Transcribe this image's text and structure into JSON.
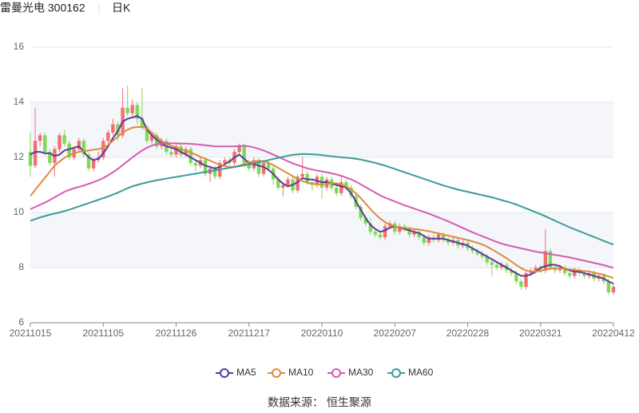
{
  "chart_data": {
    "type": "candlestick",
    "title": "雷曼光电 300162",
    "period": "日K",
    "source": "数据来源： 恒生聚源",
    "ylim": [
      6,
      16
    ],
    "yticks": [
      6,
      8,
      10,
      12,
      14,
      16
    ],
    "grid": true,
    "split_area": true,
    "up_color": "#f07070",
    "down_color": "#7ed957",
    "categories": [
      "20211015",
      null,
      null,
      null,
      null,
      null,
      null,
      null,
      null,
      null,
      null,
      null,
      null,
      null,
      null,
      "20211105",
      null,
      null,
      null,
      null,
      null,
      null,
      null,
      null,
      null,
      null,
      null,
      null,
      null,
      null,
      "20211126",
      null,
      null,
      null,
      null,
      null,
      null,
      null,
      null,
      null,
      null,
      null,
      null,
      null,
      null,
      "20211217",
      null,
      null,
      null,
      null,
      null,
      null,
      null,
      null,
      null,
      null,
      null,
      null,
      null,
      null,
      "20220110",
      null,
      null,
      null,
      null,
      null,
      null,
      null,
      null,
      null,
      null,
      null,
      null,
      null,
      null,
      "20220207",
      null,
      null,
      null,
      null,
      null,
      null,
      null,
      null,
      null,
      null,
      null,
      null,
      null,
      null,
      "20220228",
      null,
      null,
      null,
      null,
      null,
      null,
      null,
      null,
      null,
      null,
      null,
      null,
      null,
      null,
      "20220321",
      null,
      null,
      null,
      null,
      null,
      null,
      null,
      null,
      null,
      null,
      null,
      null,
      null,
      null,
      "20220412"
    ],
    "open": [
      12.2,
      11.7,
      12.6,
      12.8,
      12.2,
      11.8,
      12.3,
      12.8,
      12.5,
      12.0,
      12.3,
      12.6,
      12.1,
      11.6,
      11.9,
      12.0,
      12.6,
      12.9,
      13.2,
      12.8,
      13.8,
      13.6,
      13.9,
      13.4,
      13.1,
      12.6,
      12.8,
      12.4,
      12.6,
      12.2,
      12.1,
      12.4,
      12.1,
      12.3,
      11.8,
      11.7,
      11.9,
      11.4,
      11.6,
      11.3,
      11.8,
      11.9,
      11.8,
      12.2,
      12.4,
      11.8,
      11.6,
      11.9,
      11.4,
      11.8,
      11.6,
      11.2,
      10.9,
      11.0,
      11.2,
      10.8,
      11.3,
      11.4,
      11.1,
      11.0,
      11.3,
      10.9,
      11.2,
      10.9,
      10.7,
      11.1,
      10.9,
      10.6,
      10.2,
      9.8,
      9.6,
      9.3,
      9.2,
      9.1,
      9.5,
      9.6,
      9.3,
      9.5,
      9.4,
      9.2,
      9.3,
      9.1,
      8.9,
      9.1,
      9.0,
      9.2,
      9.0,
      8.9,
      9.0,
      8.8,
      8.9,
      8.7,
      8.6,
      8.5,
      8.4,
      8.2,
      8.1,
      8.0,
      8.1,
      7.9,
      7.8,
      7.5,
      7.3,
      7.8,
      7.9,
      8.0,
      7.9,
      8.6,
      8.0,
      7.9,
      8.0,
      7.8,
      7.7,
      7.9,
      7.8,
      7.7,
      7.8,
      7.6,
      7.7,
      7.5,
      7.1
    ],
    "close": [
      11.7,
      12.6,
      12.8,
      12.2,
      11.8,
      12.3,
      12.8,
      12.5,
      12.0,
      12.3,
      12.6,
      12.1,
      11.6,
      11.9,
      12.0,
      12.6,
      12.9,
      13.2,
      12.8,
      13.8,
      13.6,
      13.9,
      13.4,
      13.1,
      12.6,
      12.8,
      12.4,
      12.6,
      12.2,
      12.1,
      12.4,
      12.1,
      12.3,
      11.8,
      11.7,
      11.9,
      11.4,
      11.6,
      11.3,
      11.8,
      11.9,
      11.8,
      12.2,
      12.4,
      11.8,
      11.6,
      11.9,
      11.4,
      11.8,
      11.6,
      11.2,
      10.9,
      11.0,
      11.2,
      10.8,
      11.3,
      11.4,
      11.1,
      11.0,
      11.3,
      10.9,
      11.2,
      10.9,
      10.7,
      11.1,
      10.9,
      10.6,
      10.2,
      9.8,
      9.6,
      9.3,
      9.2,
      9.1,
      9.5,
      9.6,
      9.3,
      9.5,
      9.4,
      9.2,
      9.3,
      9.1,
      8.9,
      9.1,
      9.0,
      9.2,
      9.0,
      8.9,
      9.0,
      8.8,
      8.9,
      8.7,
      8.6,
      8.5,
      8.4,
      8.2,
      8.1,
      8.0,
      8.1,
      7.9,
      7.8,
      7.5,
      7.3,
      7.8,
      7.9,
      8.0,
      7.9,
      8.6,
      8.0,
      7.9,
      8.0,
      7.8,
      7.7,
      7.9,
      7.8,
      7.7,
      7.8,
      7.6,
      7.7,
      7.5,
      7.1,
      7.3
    ],
    "low": [
      11.3,
      11.6,
      12.4,
      12.1,
      11.7,
      11.3,
      12.2,
      12.4,
      11.9,
      11.9,
      12.2,
      12.0,
      11.5,
      11.5,
      11.8,
      11.9,
      12.5,
      12.8,
      12.6,
      12.7,
      13.5,
      13.5,
      13.2,
      13.0,
      12.5,
      12.5,
      12.3,
      12.3,
      12.1,
      12.0,
      12.0,
      12.0,
      12.0,
      11.7,
      11.5,
      11.6,
      11.3,
      11.1,
      11.2,
      11.2,
      11.7,
      11.7,
      11.7,
      12.1,
      11.7,
      11.5,
      11.5,
      11.3,
      11.3,
      11.5,
      11.0,
      10.8,
      10.6,
      10.9,
      10.7,
      10.7,
      11.2,
      11.0,
      10.8,
      10.9,
      10.5,
      10.8,
      10.8,
      10.6,
      10.6,
      10.8,
      10.5,
      10.1,
      9.7,
      9.5,
      9.2,
      9.1,
      9.0,
      9.0,
      9.4,
      9.2,
      9.2,
      9.3,
      9.1,
      9.1,
      9.0,
      8.8,
      8.8,
      8.9,
      8.9,
      8.9,
      8.8,
      8.8,
      8.7,
      8.7,
      8.6,
      8.5,
      8.4,
      8.3,
      8.1,
      7.7,
      7.9,
      7.9,
      7.8,
      7.7,
      7.4,
      7.2,
      7.2,
      7.7,
      7.8,
      7.8,
      7.8,
      7.9,
      7.8,
      7.8,
      7.7,
      7.6,
      7.6,
      7.7,
      7.6,
      7.6,
      7.5,
      7.5,
      7.4,
      7.0,
      7.0
    ],
    "high": [
      12.9,
      13.8,
      12.9,
      12.9,
      12.3,
      12.4,
      12.9,
      13.0,
      12.6,
      12.4,
      12.7,
      12.7,
      12.2,
      12.0,
      12.2,
      12.7,
      13.0,
      13.4,
      13.3,
      14.5,
      14.6,
      14.1,
      14.0,
      14.5,
      13.2,
      12.9,
      12.9,
      12.7,
      12.7,
      12.3,
      12.5,
      12.5,
      12.4,
      12.4,
      11.9,
      12.0,
      12.0,
      11.7,
      11.7,
      11.9,
      12.0,
      12.0,
      12.3,
      12.5,
      12.5,
      11.9,
      12.0,
      12.0,
      11.9,
      11.9,
      11.7,
      11.3,
      11.1,
      11.3,
      11.3,
      11.4,
      12.0,
      11.5,
      11.2,
      11.4,
      11.4,
      11.3,
      11.3,
      11.0,
      11.3,
      11.2,
      11.0,
      10.7,
      10.3,
      9.9,
      9.8,
      9.4,
      9.3,
      9.6,
      9.7,
      9.7,
      9.6,
      9.6,
      9.5,
      9.4,
      9.4,
      9.2,
      9.2,
      9.2,
      9.3,
      9.3,
      9.1,
      9.1,
      9.1,
      9.0,
      9.0,
      8.8,
      8.7,
      8.6,
      8.5,
      8.3,
      8.2,
      8.2,
      8.2,
      8.0,
      7.9,
      7.6,
      7.9,
      8.0,
      8.1,
      8.1,
      9.4,
      8.7,
      8.1,
      8.1,
      8.1,
      7.9,
      8.0,
      8.0,
      7.9,
      7.9,
      7.9,
      7.8,
      7.8,
      7.6,
      7.4
    ],
    "series": [
      {
        "name": "MA5",
        "color": "#5b3c9c",
        "values": [
          12.1,
          12.2,
          12.2,
          12.15,
          12.15,
          12.05,
          12.1,
          12.25,
          12.3,
          12.35,
          12.4,
          12.2,
          12.0,
          11.9,
          11.95,
          12.15,
          12.4,
          12.7,
          12.95,
          13.3,
          13.4,
          13.45,
          13.5,
          13.4,
          13.0,
          12.8,
          12.65,
          12.5,
          12.4,
          12.35,
          12.3,
          12.2,
          12.1,
          12.0,
          11.9,
          11.8,
          11.7,
          11.65,
          11.6,
          11.65,
          11.75,
          11.85,
          12.0,
          12.1,
          11.95,
          11.8,
          11.75,
          11.7,
          11.65,
          11.55,
          11.4,
          11.2,
          11.05,
          10.95,
          11.0,
          11.1,
          11.25,
          11.2,
          11.2,
          11.15,
          11.1,
          11.1,
          11.05,
          11.0,
          10.95,
          10.9,
          10.7,
          10.4,
          10.1,
          9.8,
          9.55,
          9.4,
          9.3,
          9.35,
          9.45,
          9.5,
          9.45,
          9.4,
          9.35,
          9.3,
          9.25,
          9.15,
          9.05,
          9.05,
          9.05,
          9.05,
          9.0,
          8.95,
          8.9,
          8.85,
          8.8,
          8.7,
          8.6,
          8.5,
          8.4,
          8.3,
          8.2,
          8.1,
          8.0,
          7.9,
          7.8,
          7.7,
          7.7,
          7.75,
          7.85,
          8.0,
          8.05,
          8.1,
          8.1,
          8.05,
          7.95,
          7.9,
          7.85,
          7.85,
          7.8,
          7.75,
          7.7,
          7.65,
          7.6,
          7.5,
          7.42
        ]
      },
      {
        "name": "MA10",
        "color": "#e08a3c",
        "values": [
          10.6,
          10.82,
          11.04,
          11.26,
          11.48,
          11.7,
          11.85,
          11.98,
          12.08,
          12.15,
          12.2,
          12.22,
          12.25,
          12.28,
          12.3,
          12.35,
          12.45,
          12.6,
          12.75,
          12.9,
          13.0,
          13.08,
          13.1,
          13.1,
          13.05,
          12.9,
          12.75,
          12.6,
          12.5,
          12.42,
          12.36,
          12.3,
          12.24,
          12.18,
          12.1,
          12.02,
          11.95,
          11.88,
          11.8,
          11.74,
          11.68,
          11.65,
          11.66,
          11.7,
          11.76,
          11.82,
          11.86,
          11.88,
          11.86,
          11.8,
          11.72,
          11.62,
          11.52,
          11.42,
          11.32,
          11.22,
          11.14,
          11.08,
          11.04,
          11.02,
          11.02,
          11.04,
          11.06,
          11.06,
          11.02,
          10.94,
          10.84,
          10.7,
          10.52,
          10.32,
          10.12,
          9.94,
          9.78,
          9.65,
          9.56,
          9.5,
          9.46,
          9.44,
          9.42,
          9.4,
          9.38,
          9.35,
          9.32,
          9.28,
          9.24,
          9.2,
          9.16,
          9.12,
          9.08,
          9.04,
          9.0,
          8.95,
          8.9,
          8.84,
          8.76,
          8.66,
          8.56,
          8.45,
          8.34,
          8.22,
          8.1,
          7.98,
          7.9,
          7.86,
          7.86,
          7.88,
          7.92,
          7.96,
          7.98,
          7.98,
          7.96,
          7.94,
          7.92,
          7.9,
          7.88,
          7.86,
          7.82,
          7.78,
          7.74,
          7.68,
          7.62
        ]
      },
      {
        "name": "MA30",
        "color": "#d45bb2",
        "values": [
          10.12,
          10.2,
          10.28,
          10.36,
          10.45,
          10.55,
          10.65,
          10.75,
          10.82,
          10.88,
          10.93,
          10.98,
          11.04,
          11.1,
          11.17,
          11.25,
          11.35,
          11.46,
          11.58,
          11.72,
          11.86,
          12.0,
          12.13,
          12.25,
          12.35,
          12.43,
          12.48,
          12.5,
          12.51,
          12.51,
          12.51,
          12.5,
          12.5,
          12.49,
          12.48,
          12.46,
          12.44,
          12.42,
          12.4,
          12.4,
          12.4,
          12.4,
          12.4,
          12.41,
          12.42,
          12.4,
          12.36,
          12.31,
          12.25,
          12.18,
          12.1,
          12.02,
          11.94,
          11.86,
          11.78,
          11.72,
          11.66,
          11.6,
          11.56,
          11.52,
          11.49,
          11.46,
          11.42,
          11.38,
          11.33,
          11.27,
          11.2,
          11.12,
          11.02,
          10.92,
          10.82,
          10.72,
          10.62,
          10.54,
          10.47,
          10.4,
          10.33,
          10.26,
          10.2,
          10.14,
          10.08,
          10.02,
          9.96,
          9.89,
          9.82,
          9.75,
          9.68,
          9.6,
          9.52,
          9.44,
          9.36,
          9.28,
          9.21,
          9.14,
          9.07,
          9.0,
          8.93,
          8.87,
          8.82,
          8.78,
          8.74,
          8.7,
          8.66,
          8.62,
          8.58,
          8.55,
          8.52,
          8.49,
          8.46,
          8.43,
          8.4,
          8.37,
          8.33,
          8.29,
          8.25,
          8.21,
          8.17,
          8.13,
          8.09,
          8.04,
          7.99
        ]
      },
      {
        "name": "MA60",
        "color": "#3b9b9b",
        "values": [
          9.7,
          9.76,
          9.82,
          9.87,
          9.92,
          9.96,
          10.0,
          10.05,
          10.1,
          10.16,
          10.22,
          10.28,
          10.34,
          10.4,
          10.46,
          10.52,
          10.58,
          10.65,
          10.72,
          10.8,
          10.88,
          10.95,
          11.0,
          11.05,
          11.09,
          11.13,
          11.17,
          11.2,
          11.23,
          11.26,
          11.29,
          11.32,
          11.35,
          11.38,
          11.41,
          11.44,
          11.47,
          11.5,
          11.53,
          11.56,
          11.59,
          11.62,
          11.65,
          11.68,
          11.71,
          11.74,
          11.78,
          11.82,
          11.86,
          11.9,
          11.94,
          11.98,
          12.02,
          12.06,
          12.09,
          12.11,
          12.12,
          12.12,
          12.11,
          12.1,
          12.08,
          12.06,
          12.04,
          12.02,
          12.0,
          11.99,
          11.97,
          11.95,
          11.92,
          11.88,
          11.84,
          11.8,
          11.75,
          11.7,
          11.64,
          11.58,
          11.52,
          11.46,
          11.4,
          11.34,
          11.28,
          11.22,
          11.16,
          11.1,
          11.04,
          10.98,
          10.93,
          10.88,
          10.83,
          10.79,
          10.75,
          10.71,
          10.67,
          10.63,
          10.59,
          10.55,
          10.5,
          10.45,
          10.4,
          10.35,
          10.29,
          10.22,
          10.15,
          10.08,
          10.01,
          9.94,
          9.86,
          9.78,
          9.7,
          9.62,
          9.54,
          9.46,
          9.39,
          9.32,
          9.25,
          9.18,
          9.11,
          9.04,
          8.97,
          8.9,
          8.84
        ]
      }
    ]
  }
}
